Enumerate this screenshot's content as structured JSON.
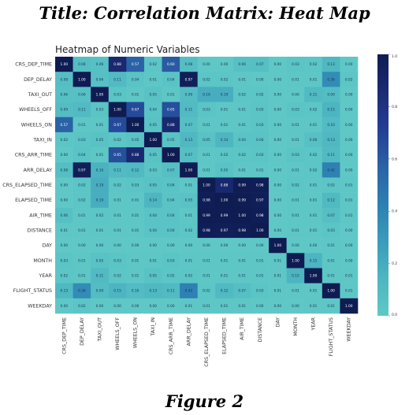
{
  "page": {
    "title": "Title: Correlation Matrix: Heat Map",
    "caption": "Figure 2"
  },
  "colors": {
    "cmap": [
      "#5fc8c6",
      "#4db6c1",
      "#3a9bbb",
      "#2d7fb2",
      "#2a62a6",
      "#233f94",
      "#1b2b74",
      "#0e1c52"
    ],
    "background": "#ffffff",
    "axis_text": "#333333"
  },
  "chart_data": {
    "type": "heatmap",
    "title": "Heatmap of Numeric Variables",
    "labels": [
      "CRS_DEP_TIME",
      "DEP_DELAY",
      "TAXI_OUT",
      "WHEELS_OFF",
      "WHEELS_ON",
      "TAXI_IN",
      "CRS_ARR_TIME",
      "ARR_DELAY",
      "CRS_ELAPSED_TIME",
      "ELAPSED_TIME",
      "AIR_TIME",
      "DISTANCE",
      "DAY",
      "MONTH",
      "YEAR",
      "FLIGHT_STATUS",
      "WEEKDAY"
    ],
    "matrix": [
      [
        1.0,
        0.08,
        0.06,
        0.88,
        0.57,
        0.02,
        0.6,
        0.08,
        0.0,
        0.0,
        0.06,
        0.07,
        0.0,
        0.03,
        0.02,
        0.13,
        0.0
      ],
      [
        0.08,
        1.0,
        0.06,
        0.11,
        0.04,
        0.01,
        0.04,
        0.97,
        0.02,
        0.02,
        0.01,
        0.0,
        0.0,
        0.01,
        0.01,
        0.36,
        0.02
      ],
      [
        0.06,
        0.06,
        1.0,
        0.03,
        0.01,
        0.05,
        0.01,
        0.09,
        0.19,
        0.19,
        0.02,
        0.02,
        0.0,
        0.0,
        0.11,
        0.09,
        0.0
      ],
      [
        0.09,
        0.11,
        0.03,
        1.0,
        0.67,
        0.04,
        0.65,
        0.11,
        0.03,
        0.01,
        0.01,
        0.03,
        0.0,
        0.03,
        0.02,
        0.15,
        0.0
      ],
      [
        0.57,
        0.01,
        0.01,
        0.67,
        1.0,
        0.05,
        0.88,
        0.07,
        0.01,
        0.01,
        0.01,
        0.03,
        0.0,
        0.01,
        0.01,
        0.1,
        0.0
      ],
      [
        0.02,
        0.03,
        0.05,
        0.02,
        0.05,
        1.0,
        0.05,
        0.13,
        0.05,
        0.14,
        0.04,
        0.04,
        0.0,
        0.01,
        0.06,
        0.13,
        0.0
      ],
      [
        0.0,
        0.04,
        0.01,
        0.65,
        0.88,
        0.05,
        1.0,
        0.07,
        0.01,
        0.02,
        0.02,
        0.03,
        0.0,
        0.03,
        0.02,
        0.11,
        0.0
      ],
      [
        0.08,
        0.97,
        0.16,
        0.11,
        0.12,
        0.03,
        0.07,
        1.0,
        0.01,
        0.05,
        0.01,
        0.01,
        0.0,
        0.01,
        0.02,
        0.42,
        0.0
      ],
      [
        0.0,
        0.02,
        0.19,
        0.02,
        0.03,
        0.05,
        0.04,
        0.01,
        1.0,
        0.88,
        0.99,
        0.98,
        0.0,
        0.02,
        0.01,
        0.02,
        0.01
      ],
      [
        0.0,
        0.02,
        0.19,
        0.01,
        0.01,
        0.14,
        0.04,
        0.05,
        0.98,
        1.0,
        0.99,
        0.97,
        0.0,
        0.01,
        0.01,
        0.12,
        0.01
      ],
      [
        0.06,
        0.01,
        0.02,
        0.01,
        0.01,
        0.04,
        0.04,
        0.01,
        0.99,
        0.99,
        1.0,
        0.98,
        0.0,
        0.01,
        0.01,
        0.07,
        0.01
      ],
      [
        0.01,
        0.01,
        0.01,
        0.01,
        0.01,
        0.04,
        0.04,
        0.02,
        0.98,
        0.97,
        0.98,
        1.0,
        0.0,
        0.01,
        0.01,
        0.03,
        0.0
      ],
      [
        0.0,
        0.0,
        0.0,
        0.0,
        0.0,
        0.0,
        0.0,
        0.0,
        0.0,
        0.0,
        0.0,
        0.0,
        1.0,
        0.0,
        0.0,
        0.01,
        0.0
      ],
      [
        0.03,
        0.01,
        0.05,
        0.03,
        0.01,
        0.01,
        0.03,
        0.01,
        0.01,
        0.01,
        0.01,
        0.01,
        0.01,
        1.0,
        0.15,
        0.01,
        0.0
      ],
      [
        0.02,
        0.01,
        0.11,
        0.02,
        0.01,
        0.05,
        0.02,
        0.02,
        0.01,
        0.01,
        0.01,
        0.01,
        0.01,
        0.15,
        1.0,
        0.01,
        0.01
      ],
      [
        0.13,
        0.36,
        0.09,
        0.15,
        0.1,
        0.13,
        0.11,
        0.42,
        0.02,
        0.12,
        0.07,
        0.03,
        0.01,
        0.01,
        0.01,
        1.0,
        0.01
      ],
      [
        0.0,
        0.02,
        0.0,
        0.0,
        0.0,
        0.0,
        0.0,
        0.01,
        0.01,
        0.01,
        0.01,
        0.0,
        0.0,
        0.0,
        0.01,
        0.01,
        1.0
      ]
    ],
    "colorbar": {
      "range": [
        0.0,
        1.0
      ],
      "ticks": [
        "1.0",
        "0.8",
        "0.6",
        "0.4",
        "0.2",
        "0.0"
      ]
    },
    "annotations": true,
    "value_format": "2 decimals"
  }
}
